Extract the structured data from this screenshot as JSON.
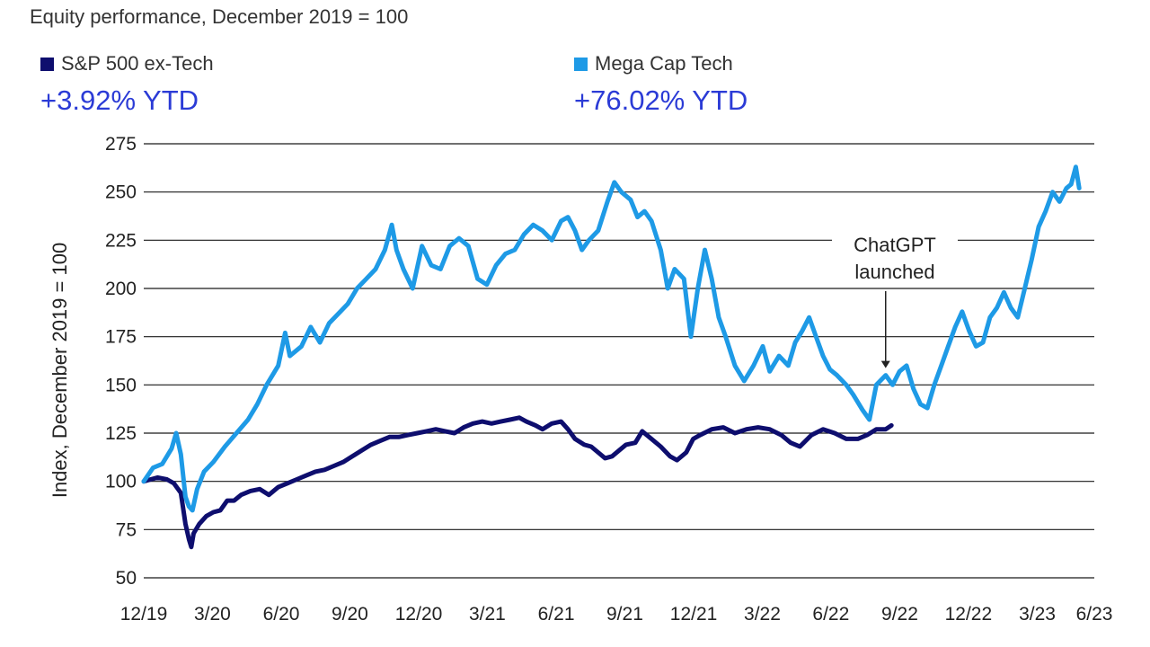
{
  "chart_data": {
    "type": "line",
    "title": "Equity performance, December 2019 = 100",
    "ylabel": "Index, December 2019 = 100",
    "xlabel": "",
    "ylim": [
      50,
      275
    ],
    "yticks": [
      50,
      75,
      100,
      125,
      150,
      175,
      200,
      225,
      250,
      275
    ],
    "xticks": [
      "12/19",
      "3/20",
      "6/20",
      "9/20",
      "12/20",
      "3/21",
      "6/21",
      "9/21",
      "12/21",
      "3/22",
      "6/22",
      "9/22",
      "12/22",
      "3/23",
      "6/23"
    ],
    "grid": true,
    "series": [
      {
        "name": "S&P 500 ex-Tech",
        "ytd_label": "+3.92% YTD",
        "color": "#0e0e6e",
        "points": [
          [
            0,
            100
          ],
          [
            0.3,
            101
          ],
          [
            0.6,
            102
          ],
          [
            1.0,
            101
          ],
          [
            1.3,
            99
          ],
          [
            1.6,
            94
          ],
          [
            1.8,
            78
          ],
          [
            1.95,
            70
          ],
          [
            2.05,
            66
          ],
          [
            2.15,
            73
          ],
          [
            2.4,
            78
          ],
          [
            2.7,
            82
          ],
          [
            3.0,
            84
          ],
          [
            3.3,
            85
          ],
          [
            3.6,
            90
          ],
          [
            3.9,
            90
          ],
          [
            4.2,
            93
          ],
          [
            4.6,
            95
          ],
          [
            5.0,
            96
          ],
          [
            5.4,
            93
          ],
          [
            5.8,
            97
          ],
          [
            6.2,
            99
          ],
          [
            6.6,
            101
          ],
          [
            7.0,
            103
          ],
          [
            7.4,
            105
          ],
          [
            7.8,
            106
          ],
          [
            8.2,
            108
          ],
          [
            8.6,
            110
          ],
          [
            9.0,
            113
          ],
          [
            9.4,
            116
          ],
          [
            9.8,
            119
          ],
          [
            10.2,
            121
          ],
          [
            10.6,
            123
          ],
          [
            11.0,
            123
          ],
          [
            11.4,
            124
          ],
          [
            11.8,
            125
          ],
          [
            12.2,
            126
          ],
          [
            12.6,
            127
          ],
          [
            13.0,
            126
          ],
          [
            13.4,
            125
          ],
          [
            13.8,
            128
          ],
          [
            14.2,
            130
          ],
          [
            14.6,
            131
          ],
          [
            15.0,
            130
          ],
          [
            15.4,
            131
          ],
          [
            15.8,
            132
          ],
          [
            16.2,
            133
          ],
          [
            16.5,
            131
          ],
          [
            16.9,
            129
          ],
          [
            17.2,
            127
          ],
          [
            17.6,
            130
          ],
          [
            18.0,
            131
          ],
          [
            18.3,
            127
          ],
          [
            18.6,
            122
          ],
          [
            19.0,
            119
          ],
          [
            19.3,
            118
          ],
          [
            19.6,
            115
          ],
          [
            19.9,
            112
          ],
          [
            20.2,
            113
          ],
          [
            20.5,
            116
          ],
          [
            20.8,
            119
          ],
          [
            21.2,
            120
          ],
          [
            21.5,
            126
          ],
          [
            21.9,
            122
          ],
          [
            22.3,
            118
          ],
          [
            22.7,
            113
          ],
          [
            23.0,
            111
          ],
          [
            23.4,
            115
          ],
          [
            23.7,
            122
          ],
          [
            24.0,
            124
          ],
          [
            24.5,
            127
          ],
          [
            25.0,
            128
          ],
          [
            25.5,
            125
          ],
          [
            26.0,
            127
          ],
          [
            26.5,
            128
          ],
          [
            27.0,
            127
          ],
          [
            27.5,
            124
          ],
          [
            27.9,
            120
          ],
          [
            28.3,
            118
          ],
          [
            28.8,
            124
          ],
          [
            29.3,
            127
          ],
          [
            29.8,
            125
          ],
          [
            30.3,
            122
          ],
          [
            30.8,
            122
          ],
          [
            31.2,
            124
          ],
          [
            31.6,
            127
          ],
          [
            32.0,
            127
          ],
          [
            32.25,
            129
          ]
        ]
      },
      {
        "name": "Mega Cap Tech",
        "ytd_label": "+76.02% YTD",
        "color": "#1e9ae6",
        "points": [
          [
            0,
            100
          ],
          [
            0.4,
            107
          ],
          [
            0.8,
            109
          ],
          [
            1.2,
            117
          ],
          [
            1.4,
            125
          ],
          [
            1.6,
            114
          ],
          [
            1.8,
            92
          ],
          [
            1.95,
            87
          ],
          [
            2.1,
            85
          ],
          [
            2.3,
            96
          ],
          [
            2.6,
            105
          ],
          [
            3.0,
            110
          ],
          [
            3.5,
            118
          ],
          [
            4.0,
            125
          ],
          [
            4.5,
            132
          ],
          [
            4.9,
            140
          ],
          [
            5.3,
            150
          ],
          [
            5.8,
            160
          ],
          [
            6.1,
            177
          ],
          [
            6.3,
            165
          ],
          [
            6.8,
            170
          ],
          [
            7.2,
            180
          ],
          [
            7.6,
            172
          ],
          [
            8.0,
            182
          ],
          [
            8.4,
            187
          ],
          [
            8.8,
            192
          ],
          [
            9.2,
            200
          ],
          [
            9.6,
            205
          ],
          [
            10.0,
            210
          ],
          [
            10.4,
            220
          ],
          [
            10.7,
            233
          ],
          [
            10.9,
            220
          ],
          [
            11.2,
            210
          ],
          [
            11.6,
            200
          ],
          [
            12.0,
            222
          ],
          [
            12.4,
            212
          ],
          [
            12.8,
            210
          ],
          [
            13.2,
            222
          ],
          [
            13.6,
            226
          ],
          [
            14.0,
            222
          ],
          [
            14.4,
            205
          ],
          [
            14.8,
            202
          ],
          [
            15.2,
            212
          ],
          [
            15.6,
            218
          ],
          [
            16.0,
            220
          ],
          [
            16.4,
            228
          ],
          [
            16.8,
            233
          ],
          [
            17.2,
            230
          ],
          [
            17.6,
            225
          ],
          [
            18.0,
            235
          ],
          [
            18.3,
            237
          ],
          [
            18.6,
            230
          ],
          [
            18.9,
            220
          ],
          [
            19.2,
            225
          ],
          [
            19.6,
            230
          ],
          [
            20.0,
            245
          ],
          [
            20.3,
            255
          ],
          [
            20.6,
            250
          ],
          [
            21.0,
            246
          ],
          [
            21.3,
            237
          ],
          [
            21.6,
            240
          ],
          [
            21.9,
            235
          ],
          [
            22.3,
            220
          ],
          [
            22.6,
            200
          ],
          [
            22.9,
            210
          ],
          [
            23.3,
            205
          ],
          [
            23.6,
            175
          ],
          [
            23.9,
            200
          ],
          [
            24.2,
            220
          ],
          [
            24.5,
            205
          ],
          [
            24.8,
            185
          ],
          [
            25.1,
            175
          ],
          [
            25.5,
            160
          ],
          [
            25.9,
            152
          ],
          [
            26.3,
            160
          ],
          [
            26.7,
            170
          ],
          [
            27.0,
            157
          ],
          [
            27.4,
            165
          ],
          [
            27.8,
            160
          ],
          [
            28.1,
            172
          ],
          [
            28.4,
            178
          ],
          [
            28.7,
            185
          ],
          [
            29.0,
            175
          ],
          [
            29.3,
            165
          ],
          [
            29.6,
            158
          ],
          [
            29.9,
            155
          ],
          [
            30.3,
            150
          ],
          [
            30.6,
            145
          ],
          [
            31.0,
            137
          ],
          [
            31.3,
            132
          ],
          [
            31.6,
            150
          ],
          [
            32.0,
            155
          ],
          [
            32.3,
            150
          ],
          [
            32.6,
            157
          ],
          [
            32.9,
            160
          ],
          [
            33.2,
            148
          ],
          [
            33.5,
            140
          ],
          [
            33.8,
            138
          ],
          [
            34.1,
            150
          ],
          [
            34.4,
            160
          ],
          [
            34.7,
            170
          ],
          [
            35.0,
            180
          ],
          [
            35.3,
            188
          ],
          [
            35.6,
            178
          ],
          [
            35.9,
            170
          ],
          [
            36.2,
            172
          ],
          [
            36.5,
            185
          ],
          [
            36.8,
            190
          ],
          [
            37.1,
            198
          ],
          [
            37.4,
            190
          ],
          [
            37.7,
            185
          ],
          [
            38.0,
            200
          ],
          [
            38.3,
            215
          ],
          [
            38.6,
            232
          ],
          [
            38.9,
            240
          ],
          [
            39.2,
            250
          ],
          [
            39.5,
            245
          ],
          [
            39.8,
            252
          ],
          [
            40.0,
            254
          ],
          [
            40.2,
            263
          ],
          [
            40.35,
            252
          ]
        ]
      }
    ],
    "x_range": [
      0,
      41
    ],
    "xtick_positions": [
      0,
      2.96,
      5.93,
      8.89,
      11.86,
      14.82,
      17.79,
      20.75,
      23.72,
      26.68,
      29.64,
      32.61,
      35.57,
      38.54,
      41
    ],
    "annotation": {
      "lines": [
        "ChatGPT",
        "launched"
      ],
      "target": [
        32.0,
        155
      ]
    }
  }
}
